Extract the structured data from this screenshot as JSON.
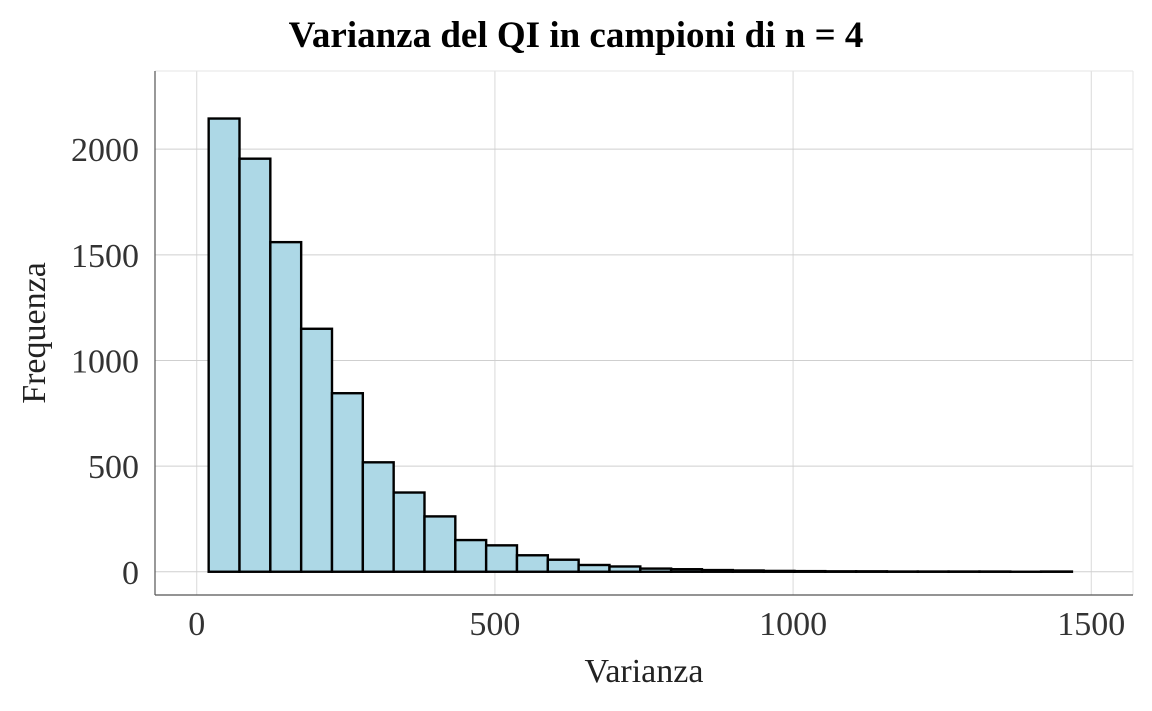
{
  "chart_data": {
    "type": "bar",
    "title": "Varianza del QI in campioni di n = 4",
    "xlabel": "Varianza",
    "ylabel": "Frequenza",
    "xlim": [
      -70,
      1570
    ],
    "ylim": [
      -110,
      2370
    ],
    "x_ticks": [
      0,
      500,
      1000,
      1500
    ],
    "y_ticks": [
      0,
      500,
      1000,
      1500,
      2000
    ],
    "grid": true,
    "legend": "none",
    "bar_fill": "#add8e6",
    "bar_stroke": "#000000",
    "bin_width": 51.7,
    "bins": [
      {
        "x_start": 20.0,
        "x_end": 71.7,
        "count": 2145
      },
      {
        "x_start": 71.7,
        "x_end": 123.4,
        "count": 1955
      },
      {
        "x_start": 123.4,
        "x_end": 175.1,
        "count": 1560
      },
      {
        "x_start": 175.1,
        "x_end": 226.8,
        "count": 1150
      },
      {
        "x_start": 226.8,
        "x_end": 278.5,
        "count": 845
      },
      {
        "x_start": 278.5,
        "x_end": 330.2,
        "count": 518
      },
      {
        "x_start": 330.2,
        "x_end": 381.9,
        "count": 375
      },
      {
        "x_start": 381.9,
        "x_end": 433.6,
        "count": 262
      },
      {
        "x_start": 433.6,
        "x_end": 485.3,
        "count": 150
      },
      {
        "x_start": 485.3,
        "x_end": 537.0,
        "count": 125
      },
      {
        "x_start": 537.0,
        "x_end": 588.7,
        "count": 78
      },
      {
        "x_start": 588.7,
        "x_end": 640.4,
        "count": 57
      },
      {
        "x_start": 640.4,
        "x_end": 692.1,
        "count": 32
      },
      {
        "x_start": 692.1,
        "x_end": 743.8,
        "count": 25
      },
      {
        "x_start": 743.8,
        "x_end": 795.5,
        "count": 15
      },
      {
        "x_start": 795.5,
        "x_end": 847.2,
        "count": 12
      },
      {
        "x_start": 847.2,
        "x_end": 898.9,
        "count": 8
      },
      {
        "x_start": 898.9,
        "x_end": 950.6,
        "count": 6
      },
      {
        "x_start": 950.6,
        "x_end": 1002.3,
        "count": 4
      },
      {
        "x_start": 1002.3,
        "x_end": 1054.0,
        "count": 3
      },
      {
        "x_start": 1054.0,
        "x_end": 1105.7,
        "count": 2
      },
      {
        "x_start": 1105.7,
        "x_end": 1157.4,
        "count": 2
      },
      {
        "x_start": 1157.4,
        "x_end": 1209.1,
        "count": 1
      },
      {
        "x_start": 1209.1,
        "x_end": 1260.8,
        "count": 1
      },
      {
        "x_start": 1260.8,
        "x_end": 1312.5,
        "count": 1
      },
      {
        "x_start": 1312.5,
        "x_end": 1364.2,
        "count": 1
      },
      {
        "x_start": 1364.2,
        "x_end": 1415.9,
        "count": 0
      },
      {
        "x_start": 1415.9,
        "x_end": 1467.6,
        "count": 1
      }
    ]
  }
}
